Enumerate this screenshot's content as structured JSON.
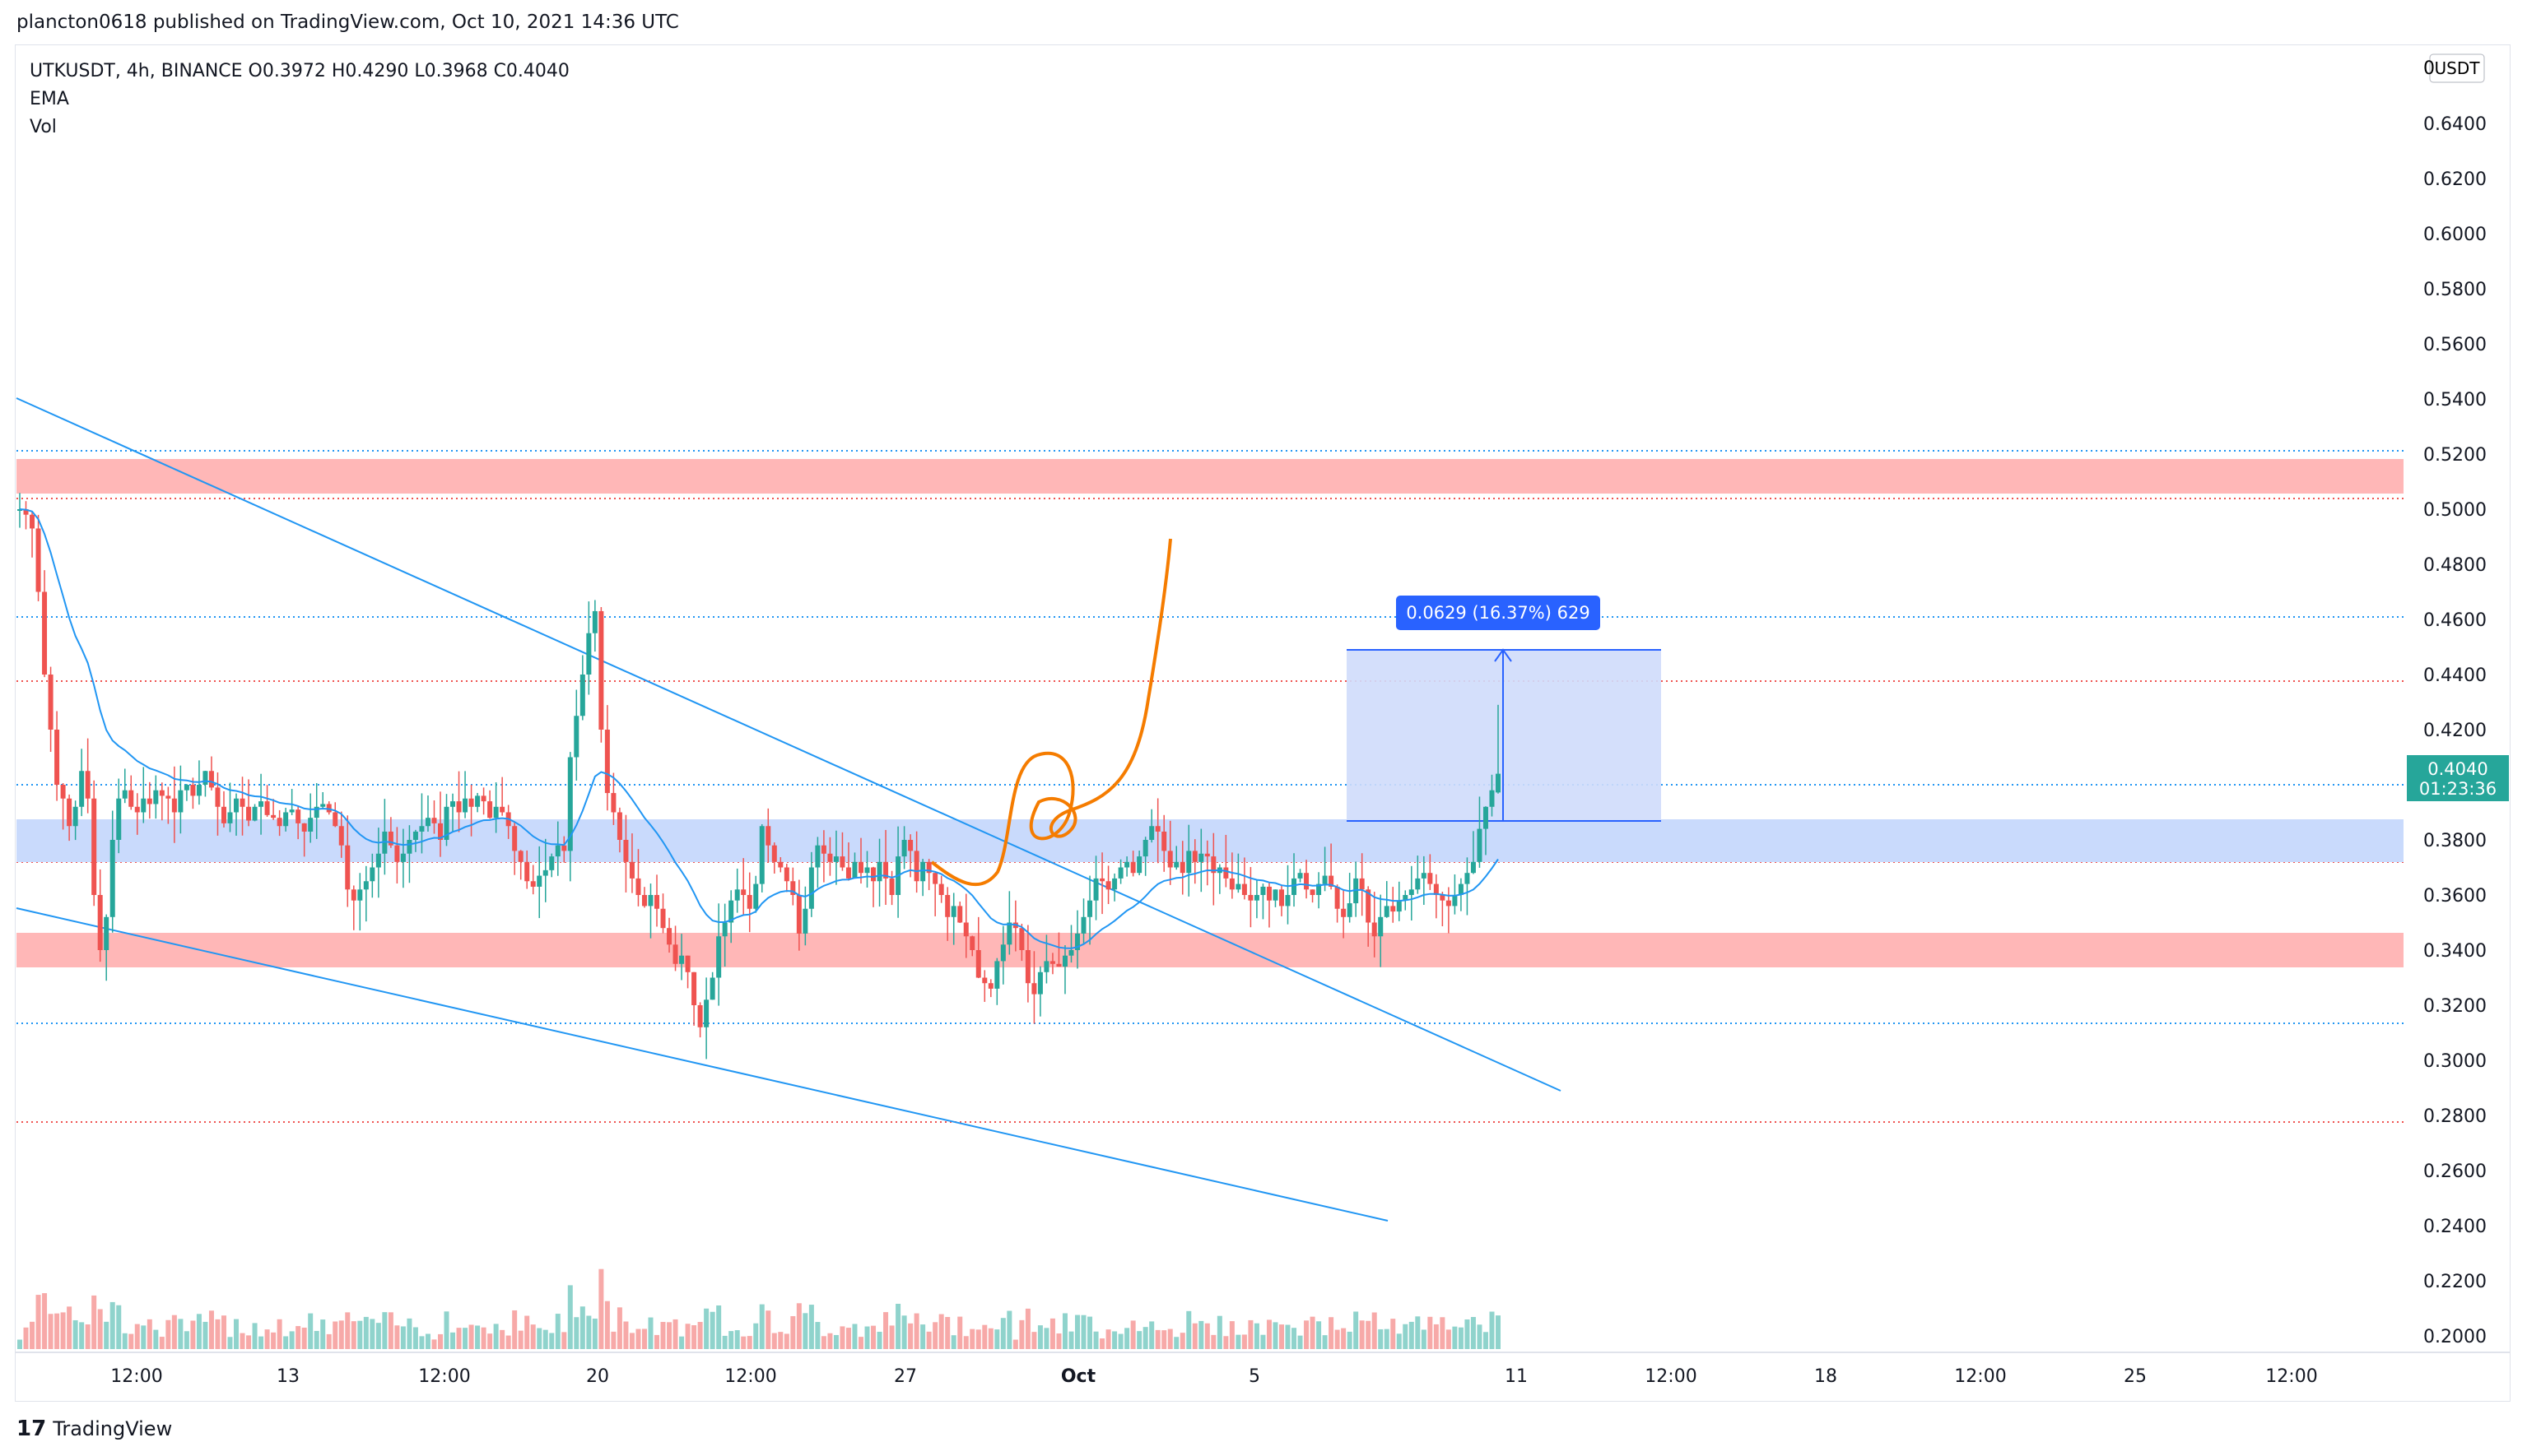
{
  "header": {
    "publish_line": "plancton0618 published on TradingView.com, Oct 10, 2021 14:36 UTC"
  },
  "legend": {
    "symbol_line": "UTKUSDT, 4h, BINANCE  O0.3972  H0.4290  L0.3968  C0.4040",
    "indicator_1": "EMA",
    "indicator_2": "Vol"
  },
  "footer": {
    "brand": "TradingView",
    "logo_mark": "17"
  },
  "price_axis": {
    "currency_label": "USDT",
    "ticks": [
      "0.6400",
      "0.6200",
      "0.6000",
      "0.5800",
      "0.5600",
      "0.5400",
      "0.5200",
      "0.5000",
      "0.4800",
      "0.4600",
      "0.4400",
      "0.4200",
      "0.4000",
      "0.3800",
      "0.3600",
      "0.3400",
      "0.3200",
      "0.3000",
      "0.2800",
      "0.2600",
      "0.2400",
      "0.2200",
      "0.2000"
    ],
    "top_partial_label": "0",
    "last_price_label": "0.4040",
    "countdown_label": "01:23:36"
  },
  "time_axis": {
    "labels": [
      "12:00",
      "13",
      "12:00",
      "20",
      "12:00",
      "27",
      "Oct",
      "5",
      "11",
      "12:00",
      "18",
      "12:00",
      "25",
      "12:00"
    ]
  },
  "measure": {
    "label": "0.0629 (16.37%) 629"
  },
  "colors": {
    "up": "#26a69a",
    "down": "#ef5350",
    "ema": "#2196f3",
    "trendline": "#2196f3",
    "zone_red": "#ffb7b7",
    "zone_blue": "#c9dafc",
    "measure_fill": "#cfdcfb",
    "measure_edge": "#2962ff",
    "orange_drawing": "#f57c00",
    "dotted_blue": "#2196f3",
    "dotted_red": "#ef5350",
    "vol_up": "#8fd3cc",
    "vol_down": "#f7a9a8"
  },
  "chart_data": {
    "type": "candlestick",
    "symbol": "UTKUSDT",
    "interval": "4h",
    "exchange": "BINANCE",
    "ylim": [
      0.19,
      0.65
    ],
    "last": {
      "open": 0.3972,
      "high": 0.429,
      "low": 0.3968,
      "close": 0.404
    },
    "closes": [
      0.5,
      0.498,
      0.493,
      0.47,
      0.44,
      0.42,
      0.4,
      0.395,
      0.385,
      0.392,
      0.405,
      0.395,
      0.36,
      0.34,
      0.352,
      0.38,
      0.395,
      0.398,
      0.392,
      0.39,
      0.395,
      0.393,
      0.398,
      0.396,
      0.395,
      0.39,
      0.398,
      0.4,
      0.396,
      0.4,
      0.405,
      0.399,
      0.392,
      0.386,
      0.39,
      0.395,
      0.392,
      0.387,
      0.392,
      0.394,
      0.389,
      0.388,
      0.385,
      0.39,
      0.391,
      0.386,
      0.383,
      0.388,
      0.392,
      0.393,
      0.39,
      0.385,
      0.378,
      0.362,
      0.358,
      0.362,
      0.365,
      0.37,
      0.375,
      0.383,
      0.378,
      0.372,
      0.375,
      0.38,
      0.383,
      0.385,
      0.388,
      0.386,
      0.38,
      0.392,
      0.394,
      0.39,
      0.395,
      0.392,
      0.396,
      0.394,
      0.388,
      0.392,
      0.39,
      0.385,
      0.376,
      0.372,
      0.365,
      0.363,
      0.367,
      0.369,
      0.374,
      0.378,
      0.376,
      0.41,
      0.425,
      0.44,
      0.455,
      0.463,
      0.42,
      0.397,
      0.39,
      0.38,
      0.372,
      0.366,
      0.36,
      0.356,
      0.36,
      0.355,
      0.348,
      0.342,
      0.335,
      0.338,
      0.332,
      0.32,
      0.312,
      0.322,
      0.33,
      0.345,
      0.35,
      0.358,
      0.362,
      0.36,
      0.355,
      0.364,
      0.385,
      0.378,
      0.372,
      0.37,
      0.365,
      0.36,
      0.346,
      0.355,
      0.37,
      0.378,
      0.375,
      0.372,
      0.374,
      0.37,
      0.366,
      0.372,
      0.368,
      0.37,
      0.365,
      0.372,
      0.366,
      0.36,
      0.374,
      0.38,
      0.376,
      0.365,
      0.372,
      0.368,
      0.364,
      0.36,
      0.352,
      0.356,
      0.35,
      0.345,
      0.34,
      0.33,
      0.328,
      0.326,
      0.336,
      0.342,
      0.35,
      0.348,
      0.34,
      0.328,
      0.324,
      0.332,
      0.336,
      0.335,
      0.334,
      0.338,
      0.34,
      0.346,
      0.352,
      0.358,
      0.366,
      0.365,
      0.362,
      0.366,
      0.37,
      0.372,
      0.368,
      0.374,
      0.38,
      0.385,
      0.383,
      0.376,
      0.37,
      0.372,
      0.368,
      0.376,
      0.372,
      0.375,
      0.374,
      0.368,
      0.37,
      0.366,
      0.362,
      0.364,
      0.36,
      0.358,
      0.36,
      0.363,
      0.358,
      0.362,
      0.356,
      0.36,
      0.366,
      0.368,
      0.362,
      0.36,
      0.364,
      0.367,
      0.363,
      0.355,
      0.352,
      0.357,
      0.366,
      0.362,
      0.35,
      0.345,
      0.352,
      0.356,
      0.354,
      0.358,
      0.36,
      0.362,
      0.366,
      0.368,
      0.364,
      0.36,
      0.358,
      0.356,
      0.36,
      0.364,
      0.368,
      0.372,
      0.384,
      0.392,
      0.398,
      0.404
    ]
  }
}
